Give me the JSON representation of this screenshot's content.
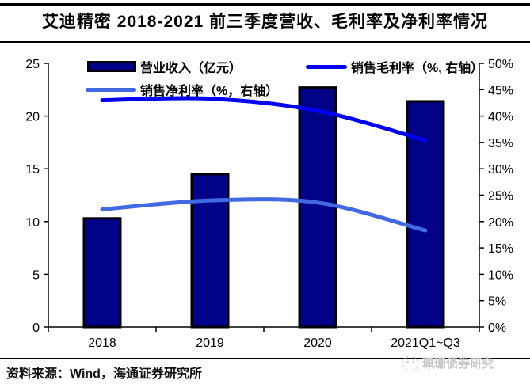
{
  "header": {
    "title": "艾迪精密 2018-2021 前三季度营收、毛利率及净利率情况"
  },
  "legend": {
    "revenue_label": "营业收入（亿元）",
    "gross_margin_label": "销售毛利率（%, 右轴）",
    "net_margin_label": "销售净利率（%，右轴）"
  },
  "chart_data": {
    "type": "bar+line combo, dual axis",
    "categories": [
      "2018",
      "2019",
      "2020",
      "2021Q1~Q3"
    ],
    "series": [
      {
        "name": "营业收入（亿元）",
        "type": "bar",
        "axis": "left",
        "values": [
          10.3,
          14.5,
          22.7,
          21.4
        ],
        "color": "#020289"
      },
      {
        "name": "销售毛利率（%, 右轴）",
        "type": "line",
        "axis": "right",
        "values": [
          43.0,
          43.3,
          41.0,
          35.4
        ],
        "color": "#0202ee"
      },
      {
        "name": "销售净利率（%，右轴）",
        "type": "line",
        "axis": "right",
        "values": [
          22.3,
          24.0,
          23.6,
          18.3
        ],
        "color": "#4169e1"
      }
    ],
    "ylim_left": [
      0,
      25
    ],
    "ylim_right": [
      0,
      50
    ],
    "y_left_ticks": [
      "0",
      "5",
      "10",
      "15",
      "20",
      "25"
    ],
    "y_right_ticks": [
      "0%",
      "5%",
      "10%",
      "15%",
      "20%",
      "25%",
      "30%",
      "35%",
      "40%",
      "45%",
      "50%"
    ],
    "bar_border_color": "#000000",
    "axis_color": "#000000",
    "grid": false,
    "legend_position": "top-inside",
    "line_smoothing": true
  },
  "footer": {
    "source": "资料来源：Wind，海通证券研究所",
    "watermark": "珮珊债券研究"
  }
}
